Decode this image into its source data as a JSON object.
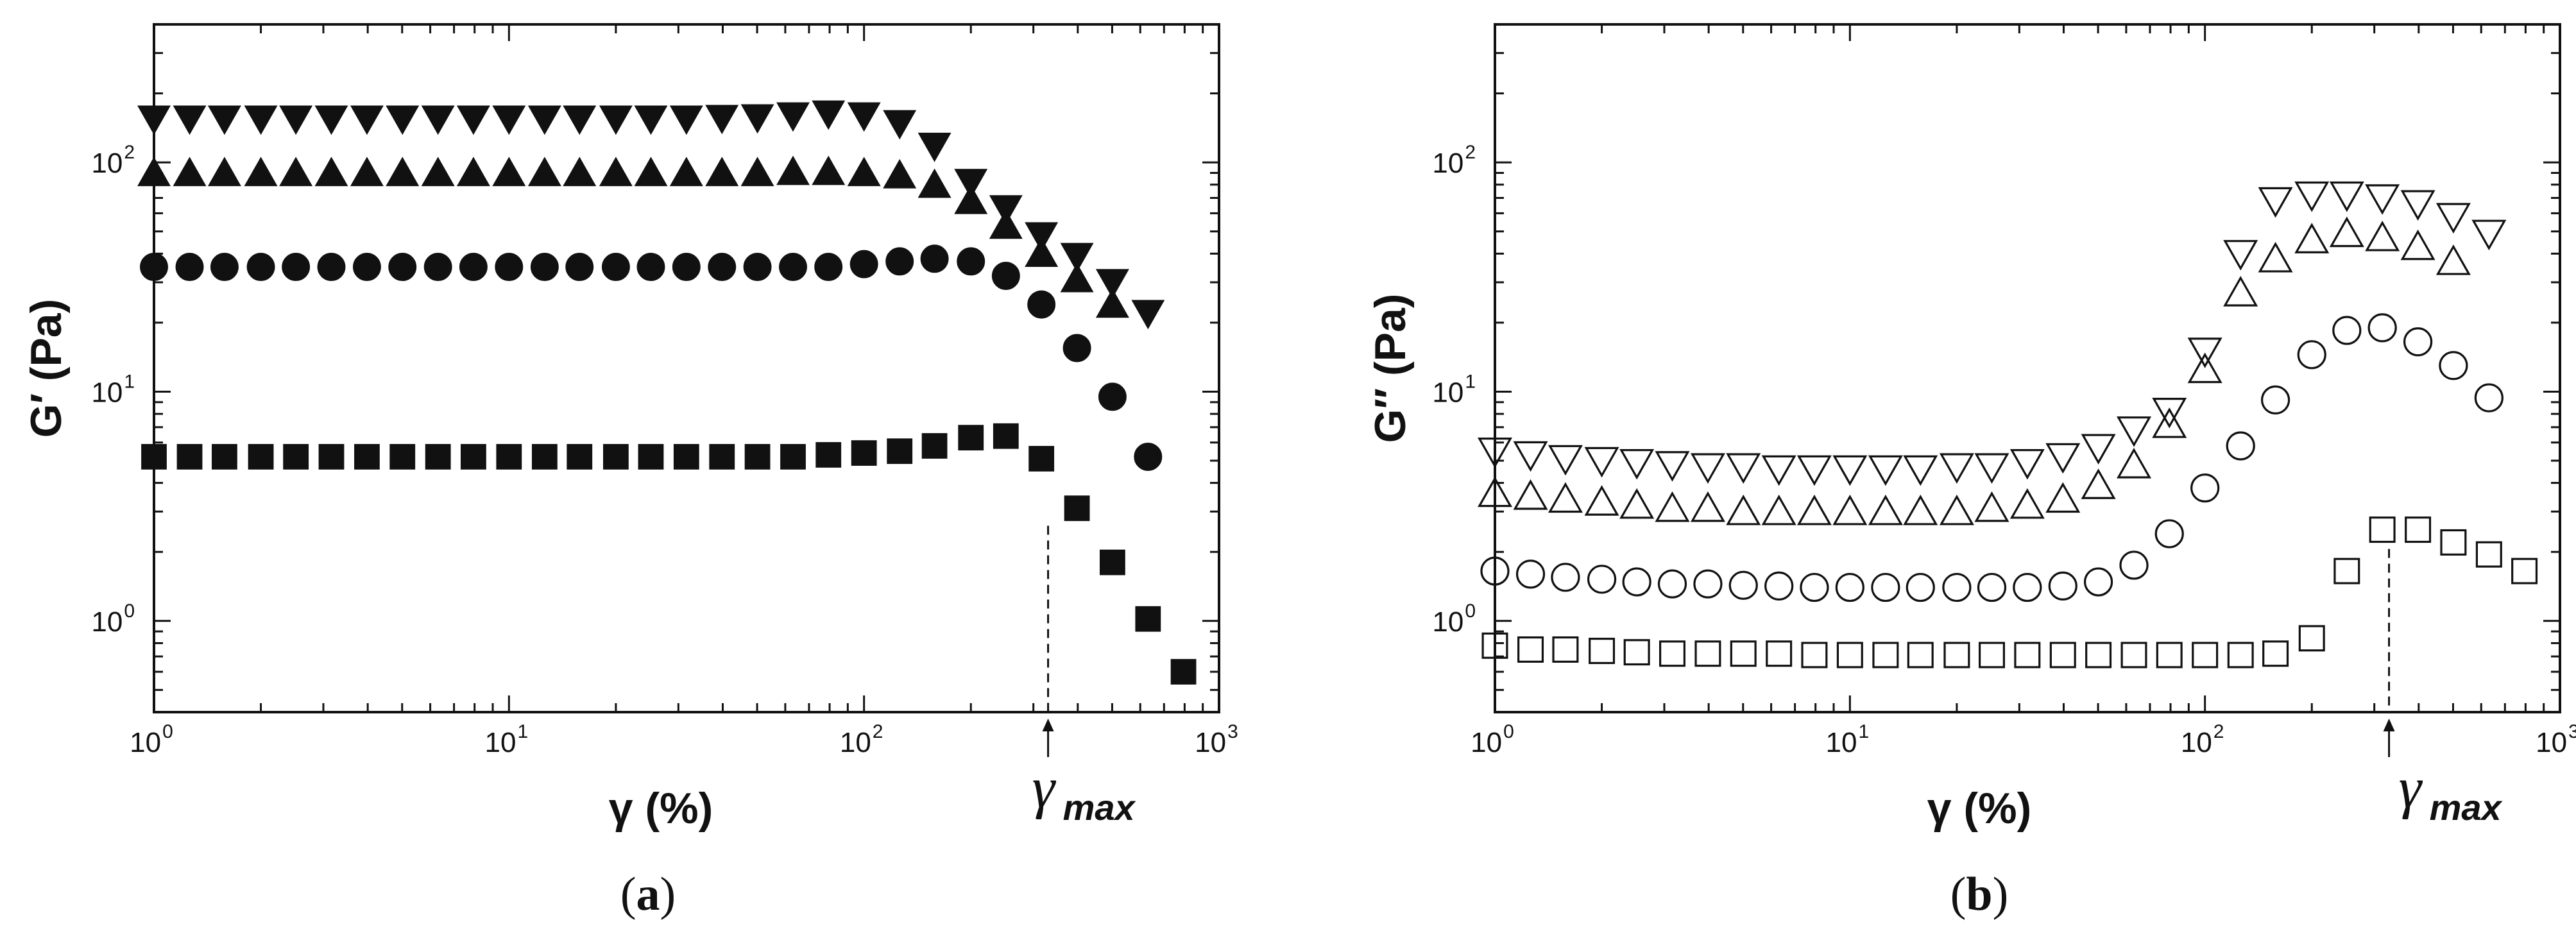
{
  "figure": {
    "panels": [
      {
        "caption_open": "(",
        "caption_letter": "a",
        "caption_close": ")",
        "ylabel": "G′ (Pa)",
        "xlabel": "γ (%)",
        "annotation": "γmax"
      },
      {
        "caption_open": "(",
        "caption_letter": "b",
        "caption_close": ")",
        "ylabel": "G″ (Pa)",
        "xlabel": "γ (%)",
        "annotation": "γmax"
      }
    ]
  },
  "chart_data": [
    {
      "type": "scatter",
      "panel": "a",
      "xscale": "log",
      "yscale": "log",
      "xlim": [
        1,
        1000
      ],
      "ylim": [
        0.4,
        400
      ],
      "xticks": [
        1,
        10,
        100,
        1000
      ],
      "yticks": [
        1,
        10,
        100
      ],
      "xlabel": "γ (%)",
      "ylabel": "G′ (Pa)",
      "annotation": {
        "text": "γmax",
        "x": 330
      },
      "series": [
        {
          "marker": "triangle-down",
          "filled": true,
          "x": [
            1,
            1.26,
            1.58,
            2,
            2.51,
            3.16,
            3.98,
            5.01,
            6.31,
            7.94,
            10,
            12.6,
            15.8,
            20,
            25.1,
            31.6,
            39.8,
            50.1,
            63.1,
            79.4,
            100,
            126,
            158,
            200,
            251,
            316,
            398,
            501,
            631
          ],
          "y": [
            155,
            155,
            155,
            155,
            155,
            155,
            155,
            155,
            155,
            155,
            155,
            155,
            155,
            155,
            155,
            155,
            156,
            157,
            160,
            163,
            160,
            148,
            118,
            82,
            63,
            48,
            39,
            30,
            22
          ]
        },
        {
          "marker": "triangle-up",
          "filled": true,
          "x": [
            1,
            1.26,
            1.58,
            2,
            2.51,
            3.16,
            3.98,
            5.01,
            6.31,
            7.94,
            10,
            12.6,
            15.8,
            20,
            25.1,
            31.6,
            39.8,
            50.1,
            63.1,
            79.4,
            100,
            126,
            158,
            200,
            251,
            316,
            398,
            501
          ],
          "y": [
            90,
            90,
            90,
            90,
            90,
            90,
            90,
            90,
            90,
            90,
            90,
            90,
            90,
            90,
            90,
            90,
            90,
            90,
            91,
            91,
            90,
            88,
            80,
            68,
            53,
            40,
            31,
            24
          ]
        },
        {
          "marker": "circle",
          "filled": true,
          "x": [
            1,
            1.26,
            1.58,
            2,
            2.51,
            3.16,
            3.98,
            5.01,
            6.31,
            7.94,
            10,
            12.6,
            15.8,
            20,
            25.1,
            31.6,
            39.8,
            50.1,
            63.1,
            79.4,
            100,
            126,
            158,
            200,
            251,
            316,
            398,
            501,
            631
          ],
          "y": [
            35,
            35,
            35,
            35,
            35,
            35,
            35,
            35,
            35,
            35,
            35,
            35,
            35,
            35,
            35,
            35,
            35,
            35,
            35,
            35,
            36,
            37,
            38,
            37,
            32,
            24,
            15.5,
            9.5,
            5.2
          ]
        },
        {
          "marker": "square",
          "filled": true,
          "x": [
            1,
            1.26,
            1.58,
            2,
            2.51,
            3.16,
            3.98,
            5.01,
            6.31,
            7.94,
            10,
            12.6,
            15.8,
            20,
            25.1,
            31.6,
            39.8,
            50.1,
            63.1,
            79.4,
            100,
            126,
            158,
            200,
            251,
            316,
            398,
            501,
            631,
            794
          ],
          "y": [
            5.2,
            5.2,
            5.2,
            5.2,
            5.2,
            5.2,
            5.2,
            5.2,
            5.2,
            5.2,
            5.2,
            5.2,
            5.2,
            5.2,
            5.2,
            5.2,
            5.2,
            5.2,
            5.2,
            5.3,
            5.4,
            5.5,
            5.8,
            6.3,
            6.4,
            5.1,
            3.1,
            1.8,
            1.02,
            0.6
          ]
        }
      ]
    },
    {
      "type": "scatter",
      "panel": "b",
      "xscale": "log",
      "yscale": "log",
      "xlim": [
        1,
        1000
      ],
      "ylim": [
        0.4,
        400
      ],
      "xticks": [
        1,
        10,
        100,
        1000
      ],
      "yticks": [
        1,
        10,
        100
      ],
      "xlabel": "γ (%)",
      "ylabel": "G″ (Pa)",
      "annotation": {
        "text": "γmax",
        "x": 330
      },
      "series": [
        {
          "marker": "triangle-down",
          "filled": false,
          "x": [
            1,
            1.26,
            1.58,
            2,
            2.51,
            3.16,
            3.98,
            5.01,
            6.31,
            7.94,
            10,
            12.6,
            15.8,
            20,
            25.1,
            31.6,
            39.8,
            50.1,
            63.1,
            79.4,
            100,
            126,
            158,
            200,
            251,
            316,
            398,
            501,
            631
          ],
          "y": [
            5.5,
            5.3,
            5.1,
            5.0,
            4.9,
            4.8,
            4.7,
            4.7,
            4.6,
            4.6,
            4.6,
            4.6,
            4.6,
            4.7,
            4.7,
            4.9,
            5.2,
            5.7,
            6.8,
            8.2,
            15,
            40,
            68,
            72,
            72,
            70,
            66,
            58,
            49
          ]
        },
        {
          "marker": "triangle-up",
          "filled": false,
          "x": [
            1,
            1.26,
            1.58,
            2,
            2.51,
            3.16,
            3.98,
            5.01,
            6.31,
            7.94,
            10,
            12.6,
            15.8,
            20,
            25.1,
            31.6,
            39.8,
            50.1,
            63.1,
            79.4,
            100,
            126,
            158,
            200,
            251,
            316,
            398,
            501
          ],
          "y": [
            3.6,
            3.5,
            3.4,
            3.3,
            3.2,
            3.1,
            3.1,
            3.0,
            3.0,
            3.0,
            3.0,
            3.0,
            3.0,
            3.0,
            3.1,
            3.2,
            3.4,
            3.9,
            4.8,
            7.2,
            12.5,
            27,
            38,
            46,
            49,
            47,
            43,
            37
          ]
        },
        {
          "marker": "circle",
          "filled": false,
          "x": [
            1,
            1.26,
            1.58,
            2,
            2.51,
            3.16,
            3.98,
            5.01,
            6.31,
            7.94,
            10,
            12.6,
            15.8,
            20,
            25.1,
            31.6,
            39.8,
            50.1,
            63.1,
            79.4,
            100,
            126,
            158,
            200,
            251,
            316,
            398,
            501,
            631
          ],
          "y": [
            1.65,
            1.6,
            1.55,
            1.52,
            1.48,
            1.45,
            1.45,
            1.43,
            1.42,
            1.4,
            1.4,
            1.4,
            1.4,
            1.4,
            1.4,
            1.4,
            1.42,
            1.48,
            1.75,
            2.4,
            3.8,
            5.8,
            9.2,
            14.5,
            18.5,
            19,
            16.5,
            13,
            9.4
          ]
        },
        {
          "marker": "square",
          "filled": false,
          "x": [
            1,
            1.26,
            1.58,
            2,
            2.51,
            3.16,
            3.98,
            5.01,
            6.31,
            7.94,
            10,
            12.6,
            15.8,
            20,
            25.1,
            31.6,
            39.8,
            50.1,
            63.1,
            79.4,
            100,
            126,
            158,
            200,
            251,
            316,
            398,
            501,
            631,
            794
          ],
          "y": [
            0.78,
            0.75,
            0.75,
            0.74,
            0.73,
            0.72,
            0.72,
            0.72,
            0.72,
            0.71,
            0.71,
            0.71,
            0.71,
            0.71,
            0.71,
            0.71,
            0.71,
            0.71,
            0.71,
            0.71,
            0.71,
            0.71,
            0.72,
            0.84,
            1.65,
            2.5,
            2.5,
            2.2,
            1.95,
            1.65
          ]
        }
      ]
    }
  ]
}
